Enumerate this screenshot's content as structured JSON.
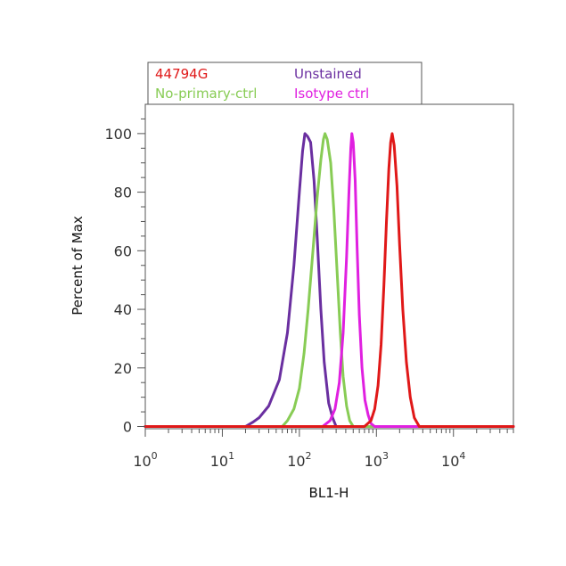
{
  "chart_data": {
    "type": "line",
    "title": "",
    "xlabel": "BL1-H",
    "ylabel": "Percent of Max",
    "x_scale": "log",
    "xlim": [
      1,
      60000
    ],
    "ylim": [
      0,
      110
    ],
    "grid": false,
    "legend_position": "top",
    "x_ticks": [
      {
        "value": 1,
        "base": "10",
        "exp": "0"
      },
      {
        "value": 10,
        "base": "10",
        "exp": "1"
      },
      {
        "value": 100,
        "base": "10",
        "exp": "2"
      },
      {
        "value": 1000,
        "base": "10",
        "exp": "3"
      },
      {
        "value": 10000,
        "base": "10",
        "exp": "4"
      }
    ],
    "y_ticks": [
      0,
      20,
      40,
      60,
      80,
      100
    ],
    "series": [
      {
        "name": "Unstained",
        "color": "#6a2fa0",
        "x": [
          1,
          20,
          25,
          30,
          40,
          55,
          70,
          85,
          100,
          110,
          118,
          128,
          140,
          155,
          170,
          190,
          210,
          240,
          270,
          300,
          60000
        ],
        "y": [
          0,
          0,
          1.5,
          3,
          7,
          16,
          32,
          55,
          80,
          94,
          100,
          99,
          97,
          84,
          65,
          40,
          22,
          8,
          3,
          0,
          0
        ]
      },
      {
        "name": "No-primary-ctrl",
        "color": "#88cc55",
        "x": [
          1,
          60,
          70,
          85,
          100,
          115,
          130,
          150,
          170,
          190,
          205,
          215,
          230,
          255,
          280,
          310,
          340,
          370,
          410,
          450,
          500,
          60000
        ],
        "y": [
          0,
          0,
          2,
          6,
          13,
          25,
          40,
          60,
          78,
          91,
          98,
          100,
          98,
          90,
          74,
          52,
          32,
          17,
          7,
          2,
          0,
          0
        ]
      },
      {
        "name": "Isotype ctrl",
        "color": "#e020e0",
        "x": [
          1,
          200,
          250,
          290,
          330,
          370,
          410,
          440,
          465,
          480,
          500,
          530,
          560,
          600,
          650,
          710,
          780,
          850,
          950,
          60000
        ],
        "y": [
          0,
          0,
          2,
          6,
          15,
          32,
          58,
          80,
          95,
          100,
          97,
          84,
          62,
          38,
          20,
          9,
          4,
          1,
          0,
          0
        ]
      },
      {
        "name": "44794G",
        "color": "#e01818",
        "x": [
          1,
          700,
          850,
          950,
          1050,
          1150,
          1250,
          1350,
          1450,
          1530,
          1600,
          1700,
          1850,
          2000,
          2200,
          2450,
          2750,
          3100,
          3600,
          60000
        ],
        "y": [
          0,
          0,
          2,
          6,
          14,
          28,
          48,
          70,
          88,
          97,
          100,
          96,
          82,
          62,
          40,
          22,
          10,
          3,
          0,
          0
        ]
      }
    ]
  },
  "legend": {
    "items": [
      {
        "label": "44794G",
        "color": "#e01818"
      },
      {
        "label": "Unstained",
        "color": "#6a2fa0"
      },
      {
        "label": "No-primary-ctrl",
        "color": "#88cc55"
      },
      {
        "label": "Isotype ctrl",
        "color": "#e020e0"
      }
    ]
  }
}
